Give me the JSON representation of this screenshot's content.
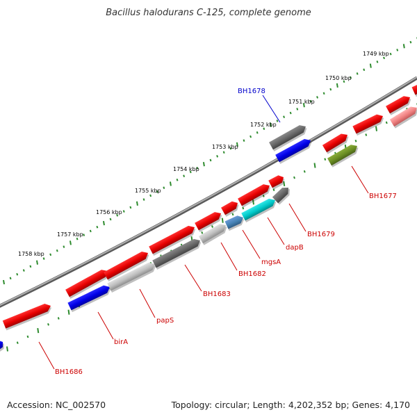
{
  "title": "Bacillus halodurans C-125, complete genome",
  "footer": {
    "accession": "Accession: NC_002570",
    "summary": "Topology: circular; Length: 4,202,352 bp; Genes: 4,170"
  },
  "colors": {
    "backbone": "#8c8c8c",
    "tick": "#2e8b2e",
    "label_red": "#cc0000",
    "label_blue": "#0000cc"
  },
  "scale_labels": [
    "1749 kbp",
    "1750 kbp",
    "1751 kbp",
    "1752 kbp",
    "1753 kbp",
    "1754 kbp",
    "1755 kbp",
    "1756 kbp",
    "1757 kbp",
    "1758 kbp"
  ],
  "gene_labels": [
    {
      "name": "BH1678",
      "selected": true
    },
    {
      "name": "BH1677",
      "selected": false
    },
    {
      "name": "BH1679",
      "selected": false
    },
    {
      "name": "dapB",
      "selected": false
    },
    {
      "name": "mgsA",
      "selected": false
    },
    {
      "name": "BH1682",
      "selected": false
    },
    {
      "name": "BH1683",
      "selected": false
    },
    {
      "name": "papS",
      "selected": false
    },
    {
      "name": "birA",
      "selected": false
    },
    {
      "name": "BH1686",
      "selected": false
    }
  ],
  "features": [
    {
      "track": "outer",
      "color": "red"
    },
    {
      "track": "outer",
      "color": "red"
    },
    {
      "track": "outer",
      "color": "red"
    },
    {
      "track": "outer",
      "color": "red"
    },
    {
      "track": "outer",
      "color": "red"
    },
    {
      "track": "outer",
      "color": "red"
    },
    {
      "track": "outer",
      "color": "red"
    },
    {
      "track": "outer",
      "color": "red"
    },
    {
      "track": "outer",
      "color": "red"
    },
    {
      "track": "outer",
      "color": "red"
    },
    {
      "track": "outer",
      "color": "red"
    },
    {
      "track": "outer",
      "color": "red"
    },
    {
      "track": "outer",
      "color": "dark-gray"
    },
    {
      "track": "inner",
      "color": "blue"
    },
    {
      "track": "inner",
      "color": "light-gray"
    },
    {
      "track": "inner",
      "color": "dark-gray"
    },
    {
      "track": "inner",
      "color": "light-gray"
    },
    {
      "track": "inner",
      "color": "steel-blue"
    },
    {
      "track": "inner",
      "color": "cyan"
    },
    {
      "track": "inner",
      "color": "dark-gray"
    },
    {
      "track": "inner",
      "color": "olive-green"
    },
    {
      "track": "inner",
      "color": "salmon"
    },
    {
      "track": "inner",
      "color": "blue"
    },
    {
      "track": "inner",
      "color": "blue"
    }
  ]
}
